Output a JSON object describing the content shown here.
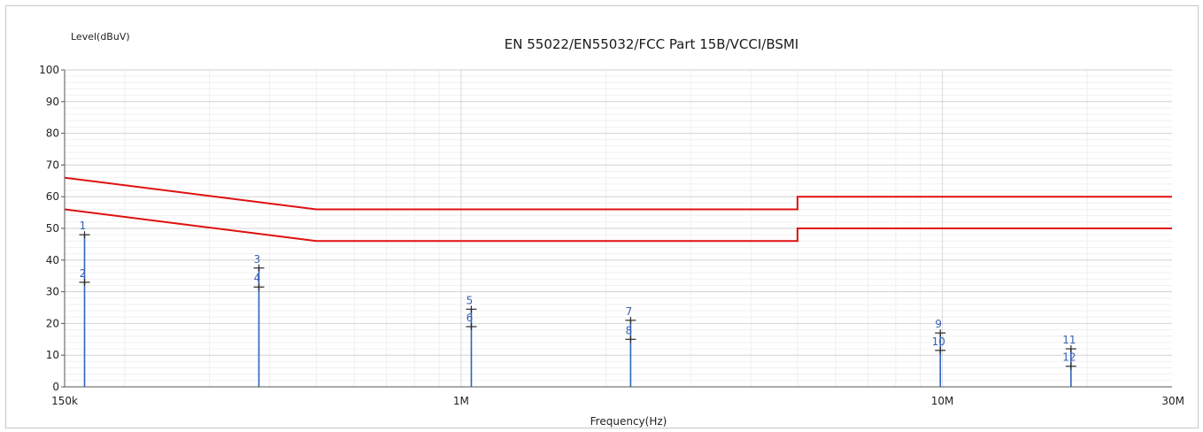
{
  "chart_data": {
    "type": "line",
    "title": "EN 55022/EN55032/FCC Part 15B/VCCI/BSMI",
    "ylabel": "Level(dBuV)",
    "xlabel": "Frequency(Hz)",
    "x_scale": "log",
    "xlim": [
      150000,
      30000000
    ],
    "ylim": [
      0,
      100
    ],
    "y_ticks": [
      0,
      10,
      20,
      30,
      40,
      50,
      60,
      70,
      80,
      90,
      100
    ],
    "x_ticks": [
      {
        "value": 150000,
        "label": "150k"
      },
      {
        "value": 1000000,
        "label": "1M"
      },
      {
        "value": 10000000,
        "label": "10M"
      },
      {
        "value": 30000000,
        "label": "30M"
      }
    ],
    "grid": true,
    "limit_color": "#e01010",
    "measure_color": "#2f64c0",
    "series": [
      {
        "points": [
          [
            150000,
            66
          ],
          [
            500000,
            56
          ],
          [
            5000000,
            56
          ],
          [
            5000000,
            60
          ],
          [
            30000000,
            60
          ]
        ]
      },
      {
        "points": [
          [
            150000,
            56
          ],
          [
            500000,
            46
          ],
          [
            5000000,
            46
          ],
          [
            5000000,
            50
          ],
          [
            30000000,
            50
          ]
        ]
      }
    ],
    "markers": [
      {
        "freq": 165000,
        "peak": 48,
        "avg": 33,
        "peak_label": "1",
        "avg_label": "2"
      },
      {
        "freq": 380000,
        "peak": 37.5,
        "avg": 31.5,
        "peak_label": "3",
        "avg_label": "4"
      },
      {
        "freq": 1050000,
        "peak": 24.5,
        "avg": 19,
        "peak_label": "5",
        "avg_label": "6"
      },
      {
        "freq": 2250000,
        "peak": 21,
        "avg": 15,
        "peak_label": "7",
        "avg_label": "8"
      },
      {
        "freq": 9900000,
        "peak": 17,
        "avg": 11.5,
        "peak_label": "9",
        "avg_label": "10"
      },
      {
        "freq": 18500000,
        "peak": 12,
        "avg": 6.5,
        "peak_label": "11",
        "avg_label": "12"
      }
    ]
  }
}
